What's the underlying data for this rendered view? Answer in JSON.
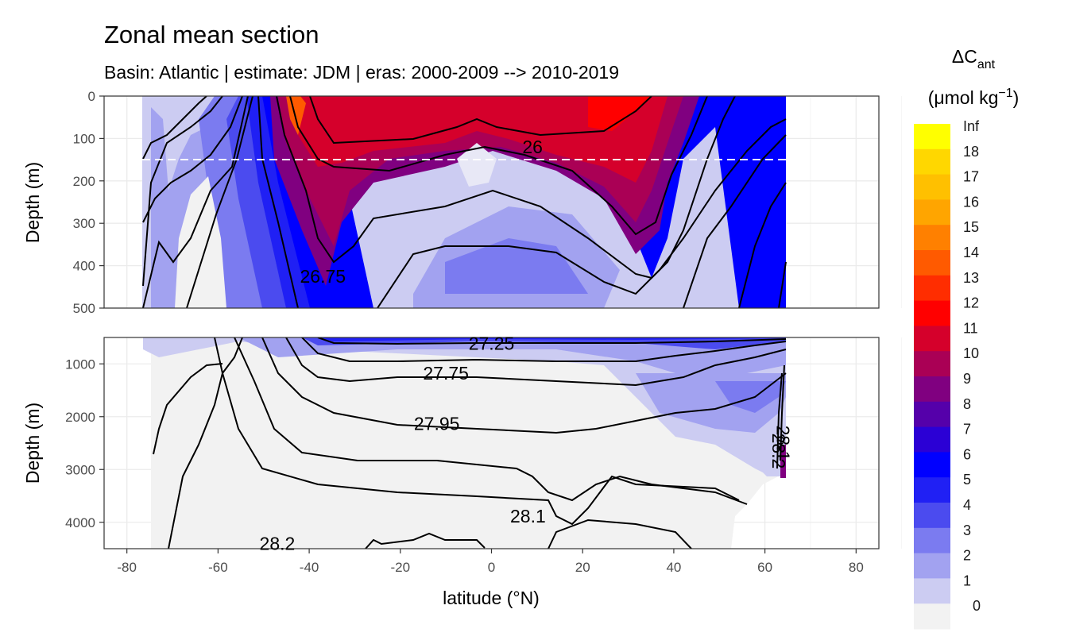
{
  "chart_data": {
    "type": "heatmap",
    "title": "Zonal mean section",
    "subtitle": "Basin: Atlantic | estimate: JDM  | eras: 2000-2009 --> 2010-2019",
    "xlabel": "latitude (°N)",
    "ylabel": "Depth (m)",
    "x_ticks": [
      "-80",
      "-60",
      "-40",
      "-20",
      "0",
      "20",
      "40",
      "60",
      "80"
    ],
    "xlim": [
      -85,
      85
    ],
    "panels": [
      {
        "name": "upper",
        "ylim": [
          500,
          0
        ],
        "y_ticks": [
          "0",
          "100",
          "200",
          "300",
          "400",
          "500"
        ],
        "reference_line_depth": 150
      },
      {
        "name": "lower",
        "ylim": [
          4500,
          500
        ],
        "y_ticks": [
          "1000",
          "2000",
          "3000",
          "4000"
        ]
      }
    ],
    "legend": {
      "title_main": "ΔC",
      "title_sub": "ant",
      "units": "(μmol kg",
      "units_exp": "−1",
      "units_close": ")",
      "position": "right",
      "labels": [
        "Inf",
        "18",
        "17",
        "16",
        "15",
        "14",
        "13",
        "12",
        "11",
        "10",
        "9",
        "8",
        "7",
        "6",
        "5",
        "4",
        "3",
        "2",
        "1",
        "0"
      ],
      "colors": [
        "#ffff00",
        "#ffd700",
        "#ffc000",
        "#ffa500",
        "#ff8000",
        "#ff5a00",
        "#ff2d00",
        "#ff0000",
        "#d5002b",
        "#aa0055",
        "#800080",
        "#5500aa",
        "#2b00d5",
        "#0000ff",
        "#2020f4",
        "#4b4bef",
        "#7b7bf0",
        "#a2a2f0",
        "#ccccf2",
        "#f2f2f2"
      ]
    },
    "contour_labels": [
      {
        "text": "26",
        "lat": 9,
        "depth": 120,
        "panel": 0
      },
      {
        "text": "26.75",
        "lat": -37,
        "depth": 425,
        "panel": 0
      },
      {
        "text": "27.25",
        "lat": 0,
        "depth": 610,
        "panel": 1
      },
      {
        "text": "27.75",
        "lat": -10,
        "depth": 1180,
        "panel": 1
      },
      {
        "text": "27.95",
        "lat": -12,
        "depth": 2130,
        "panel": 1
      },
      {
        "text": "28.1",
        "lat": 8,
        "depth": 3880,
        "panel": 1
      },
      {
        "text": "28.2",
        "lat": -47,
        "depth": 4400,
        "panel": 1
      },
      {
        "text": "28.1",
        "lat": 64,
        "depth": 2500,
        "panel": 1
      },
      {
        "text": "28.2",
        "lat": 63,
        "depth": 2650,
        "panel": 1
      }
    ]
  }
}
